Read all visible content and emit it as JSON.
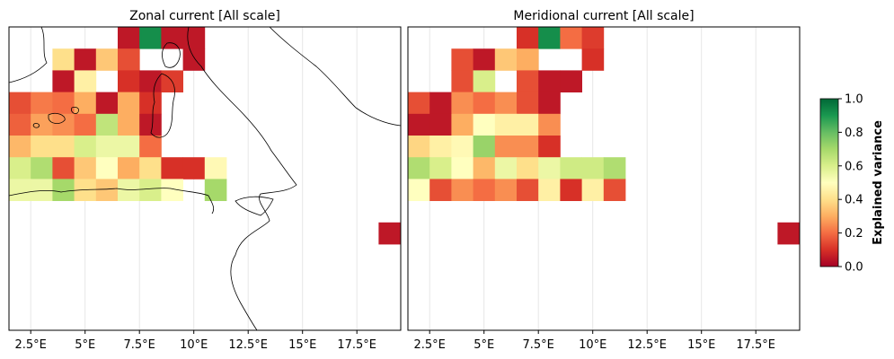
{
  "chart_data": [
    {
      "type": "heatmap",
      "title": "Zonal current [All scale]",
      "xlim": [
        1.5,
        19.5
      ],
      "x_ticks": [
        "2.5°E",
        "5°E",
        "7.5°E",
        "10°E",
        "12.5°E",
        "15°E",
        "17.5°E"
      ],
      "x_tick_values": [
        2.5,
        5,
        7.5,
        10,
        12.5,
        15,
        17.5
      ],
      "cell_width_deg": 1,
      "cell_height_deg": 1,
      "columns_lon_start": 1.5,
      "rows_lat_top": 45,
      "grid": [
        [
          null,
          null,
          null,
          null,
          null,
          0.05,
          0.92,
          0.05,
          0.05,
          null,
          null,
          null,
          null,
          null,
          null,
          null,
          null,
          null
        ],
        [
          null,
          null,
          0.4,
          0.05,
          0.35,
          0.15,
          null,
          null,
          0.05,
          null,
          null,
          null,
          null,
          null,
          null,
          null,
          null,
          null
        ],
        [
          null,
          null,
          0.05,
          0.45,
          null,
          0.1,
          0.05,
          0.12,
          null,
          null,
          null,
          null,
          null,
          null,
          null,
          null,
          null,
          null
        ],
        [
          0.15,
          0.22,
          0.2,
          0.3,
          0.05,
          0.3,
          0.1,
          null,
          null,
          null,
          null,
          null,
          null,
          null,
          null,
          null,
          null,
          null
        ],
        [
          0.18,
          0.28,
          0.25,
          0.2,
          0.65,
          0.3,
          0.05,
          null,
          null,
          null,
          null,
          null,
          null,
          null,
          null,
          null,
          null,
          null
        ],
        [
          0.32,
          0.4,
          0.4,
          0.6,
          0.55,
          0.55,
          0.2,
          null,
          null,
          null,
          null,
          null,
          null,
          null,
          null,
          null,
          null,
          null
        ],
        [
          0.6,
          0.68,
          0.15,
          0.35,
          0.5,
          0.3,
          0.4,
          0.1,
          0.1,
          0.48,
          null,
          null,
          null,
          null,
          null,
          null,
          null,
          null
        ],
        [
          0.55,
          0.55,
          0.7,
          0.4,
          0.35,
          0.55,
          0.6,
          0.5,
          null,
          0.7,
          null,
          null,
          null,
          null,
          null,
          null,
          null,
          null
        ],
        [
          null,
          null,
          null,
          null,
          null,
          null,
          null,
          null,
          null,
          null,
          null,
          null,
          null,
          null,
          null,
          null,
          null,
          null
        ],
        [
          null,
          null,
          null,
          null,
          null,
          null,
          null,
          null,
          null,
          null,
          null,
          null,
          null,
          null,
          null,
          null,
          null,
          0.05
        ]
      ]
    },
    {
      "type": "heatmap",
      "title": "Meridional current [All scale]",
      "xlim": [
        1.5,
        19.5
      ],
      "x_ticks": [
        "2.5°E",
        "5°E",
        "7.5°E",
        "10°E",
        "12.5°E",
        "15°E",
        "17.5°E"
      ],
      "x_tick_values": [
        2.5,
        5,
        7.5,
        10,
        12.5,
        15,
        17.5
      ],
      "cell_width_deg": 1,
      "cell_height_deg": 1,
      "columns_lon_start": 1.5,
      "rows_lat_top": 45,
      "grid": [
        [
          null,
          null,
          null,
          null,
          null,
          0.1,
          0.92,
          0.2,
          0.12,
          null,
          null,
          null,
          null,
          null,
          null,
          null,
          null,
          null
        ],
        [
          null,
          null,
          0.15,
          0.05,
          0.35,
          0.3,
          null,
          null,
          0.1,
          null,
          null,
          null,
          null,
          null,
          null,
          null,
          null,
          null
        ],
        [
          null,
          null,
          0.15,
          0.6,
          null,
          0.15,
          0.05,
          0.05,
          null,
          null,
          null,
          null,
          null,
          null,
          null,
          null,
          null,
          null
        ],
        [
          0.15,
          0.05,
          0.25,
          0.2,
          0.25,
          0.15,
          0.05,
          null,
          null,
          null,
          null,
          null,
          null,
          null,
          null,
          null,
          null,
          null
        ],
        [
          0.05,
          0.05,
          0.3,
          0.5,
          0.45,
          0.45,
          0.25,
          null,
          null,
          null,
          null,
          null,
          null,
          null,
          null,
          null,
          null,
          null
        ],
        [
          0.38,
          0.45,
          0.48,
          0.72,
          0.25,
          0.25,
          0.1,
          null,
          null,
          null,
          null,
          null,
          null,
          null,
          null,
          null,
          null,
          null
        ],
        [
          0.68,
          0.6,
          0.5,
          0.32,
          0.55,
          0.4,
          0.55,
          0.62,
          0.62,
          0.68,
          null,
          null,
          null,
          null,
          null,
          null,
          null,
          null
        ],
        [
          0.5,
          0.15,
          0.25,
          0.2,
          0.25,
          0.15,
          0.45,
          0.1,
          0.45,
          0.15,
          null,
          null,
          null,
          null,
          null,
          null,
          null,
          null
        ],
        [
          null,
          null,
          null,
          null,
          null,
          null,
          null,
          null,
          null,
          null,
          null,
          null,
          null,
          null,
          null,
          null,
          null,
          null
        ],
        [
          null,
          null,
          null,
          null,
          null,
          null,
          null,
          null,
          null,
          null,
          null,
          null,
          null,
          null,
          null,
          null,
          null,
          0.05
        ]
      ]
    }
  ],
  "colorbar": {
    "label": "Explained variance",
    "range": [
      0.0,
      1.0
    ],
    "ticks": [
      "0.0",
      "0.2",
      "0.4",
      "0.6",
      "0.8",
      "1.0"
    ],
    "tick_values": [
      0.0,
      0.2,
      0.4,
      0.6,
      0.8,
      1.0
    ],
    "colormap": "RdYlGn",
    "stops": [
      "#a50026",
      "#d73027",
      "#f46d43",
      "#fdae61",
      "#fee08b",
      "#ffffbf",
      "#d9ef8b",
      "#a6d96a",
      "#66bd63",
      "#1a9850",
      "#006837"
    ]
  },
  "colors": {
    "coastline": "#000000",
    "frame": "#000000",
    "gridline": "#e6e6e6"
  }
}
